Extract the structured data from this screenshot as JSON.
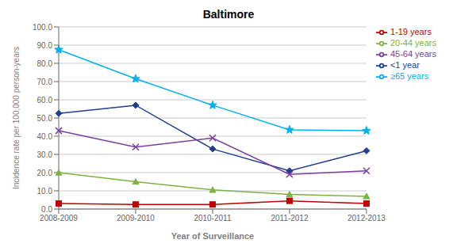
{
  "chart_data": {
    "type": "line",
    "title": "Baltimore",
    "xlabel": "Year of Surveillance",
    "ylabel": "Incidence rate per 100,000  person-years",
    "categories": [
      "2008-2009",
      "2009-2010",
      "2010-2011",
      "2011-2012",
      "2012-2013"
    ],
    "series": [
      {
        "name": "<1 year",
        "color": "#1F3F8F",
        "marker": "diamond",
        "values": [
          52.5,
          57.0,
          33.0,
          21.0,
          32.0
        ]
      },
      {
        "name": "1-19 years",
        "color": "#C00000",
        "marker": "square",
        "values": [
          3.0,
          2.5,
          2.5,
          4.5,
          3.0
        ]
      },
      {
        "name": "20-44 years",
        "color": "#7CB342",
        "marker": "triangle",
        "values": [
          20.0,
          15.0,
          10.5,
          8.0,
          7.0
        ]
      },
      {
        "name": "45-64 years",
        "color": "#7B3F9E",
        "marker": "x",
        "values": [
          43.0,
          34.0,
          39.0,
          19.0,
          21.0
        ]
      },
      {
        "name": "≥65 years",
        "color": "#00B0F0",
        "marker": "star",
        "values": [
          87.5,
          71.5,
          57.0,
          43.5,
          43.0
        ]
      }
    ],
    "ylim": [
      0.0,
      100.0
    ],
    "yticks": [
      {
        "value": 0.0,
        "label": "0.0"
      },
      {
        "value": 10.0,
        "label": "10.0"
      },
      {
        "value": 20.0,
        "label": "20.0"
      },
      {
        "value": 30.0,
        "label": "30.0"
      },
      {
        "value": 40.0,
        "label": "40.0"
      },
      {
        "value": 50.0,
        "label": "50.0"
      },
      {
        "value": 60.0,
        "label": "60.0"
      },
      {
        "value": 70.0,
        "label": "70.0"
      },
      {
        "value": 80.0,
        "label": "80.0"
      },
      {
        "value": 90.0,
        "label": "90.0"
      },
      {
        "value": 100.0,
        "label": "100.0"
      }
    ],
    "grid": true,
    "legend": "right"
  }
}
